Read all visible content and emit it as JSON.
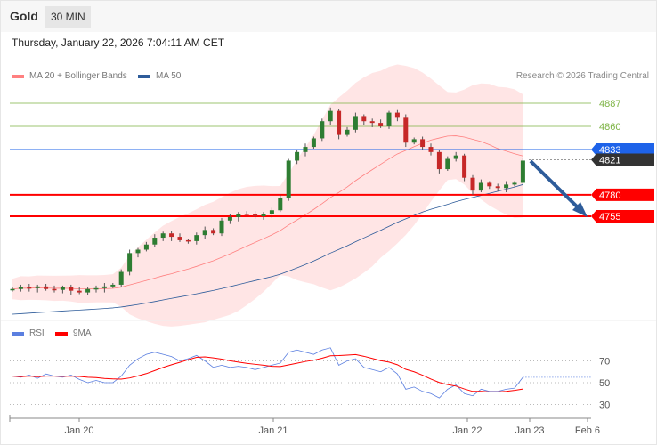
{
  "header": {
    "instrument": "Gold",
    "timeframe": "30 MIN",
    "datetime": "Thursday, January 22, 2026 7:04:11 AM CET"
  },
  "legend": {
    "ma20": "MA 20 + Bollinger Bands",
    "ma50": "MA 50",
    "rsi": "RSI",
    "ma9": "9MA",
    "credit": "Research © 2026 Trading Central"
  },
  "colors": {
    "up": "#2e7d32",
    "down": "#c62828",
    "resistance": "#7cb342",
    "support": "#ff0000",
    "current": "#1e63e9",
    "last": "#333333",
    "arrow": "#2e5c9a",
    "band": "#ffe0e0",
    "ma20": "#ff8080",
    "ma50": "#2e5c9a",
    "rsi": "#5b7fe0",
    "rsi_ma": "#ff0000"
  },
  "levels": [
    {
      "value": 4887,
      "label": "4887",
      "type": "resistance"
    },
    {
      "value": 4860,
      "label": "4860",
      "type": "resistance"
    },
    {
      "value": 4833,
      "label": "4833",
      "type": "current"
    },
    {
      "value": 4821,
      "label": "4821",
      "type": "last"
    },
    {
      "value": 4780,
      "label": "4780",
      "type": "support"
    },
    {
      "value": 4755,
      "label": "4755",
      "type": "support"
    }
  ],
  "chart_data": {
    "type": "candlestick",
    "closes": [
      4670,
      4672,
      4671,
      4673,
      4670,
      4669,
      4672,
      4668,
      4666,
      4670,
      4671,
      4673,
      4675,
      4690,
      4712,
      4716,
      4722,
      4730,
      4735,
      4731,
      4727,
      4726,
      4733,
      4739,
      4735,
      4750,
      4754,
      4758,
      4757,
      4755,
      4758,
      4762,
      4776,
      4820,
      4830,
      4836,
      4846,
      4866,
      4878,
      4850,
      4856,
      4872,
      4866,
      4864,
      4860,
      4876,
      4870,
      4841,
      4845,
      4836,
      4830,
      4810,
      4822,
      4826,
      4800,
      4785,
      4794,
      4790,
      4788,
      4792,
      4794,
      4820
    ],
    "rsi": [
      56,
      55,
      57,
      54,
      58,
      56,
      55,
      57,
      53,
      50,
      52,
      50,
      50,
      56,
      66,
      72,
      76,
      78,
      76,
      74,
      70,
      72,
      75,
      70,
      64,
      66,
      64,
      65,
      64,
      62,
      64,
      66,
      68,
      78,
      80,
      78,
      76,
      80,
      82,
      66,
      70,
      72,
      64,
      62,
      60,
      64,
      58,
      44,
      46,
      42,
      40,
      36,
      44,
      48,
      40,
      38,
      44,
      42,
      42,
      44,
      45,
      55
    ],
    "rsi_ticks": [
      70,
      50,
      30
    ],
    "x_labels": [
      "Jan 20",
      "Jan 21",
      "Jan 22",
      "Jan 23",
      "Feb 6"
    ]
  }
}
